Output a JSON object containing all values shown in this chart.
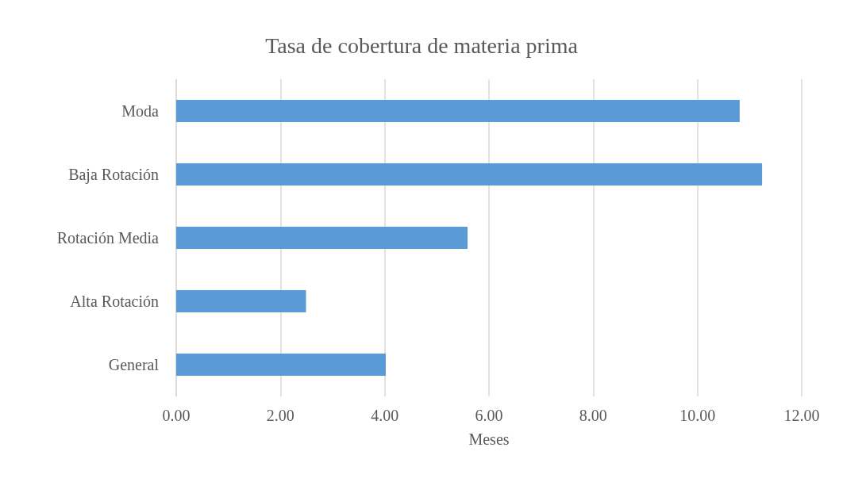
{
  "chart_data": {
    "type": "bar",
    "orientation": "horizontal",
    "title": "Tasa de cobertura de materia prima",
    "xlabel": "Meses",
    "categories": [
      "Moda",
      "Baja Rotación",
      "Rotación Media",
      "Alta Rotación",
      "General"
    ],
    "values": [
      10.81,
      11.24,
      5.59,
      2.49,
      4.02
    ],
    "color": "#5b9bd5",
    "xlim": [
      0,
      12
    ],
    "xticks": [
      {
        "value": 0,
        "label": "0.00"
      },
      {
        "value": 2,
        "label": "2.00"
      },
      {
        "value": 4,
        "label": "4.00"
      },
      {
        "value": 6,
        "label": "6.00"
      },
      {
        "value": 8,
        "label": "8.00"
      },
      {
        "value": 10,
        "label": "10.00"
      },
      {
        "value": 12,
        "label": "12.00"
      }
    ],
    "grid": "x"
  }
}
